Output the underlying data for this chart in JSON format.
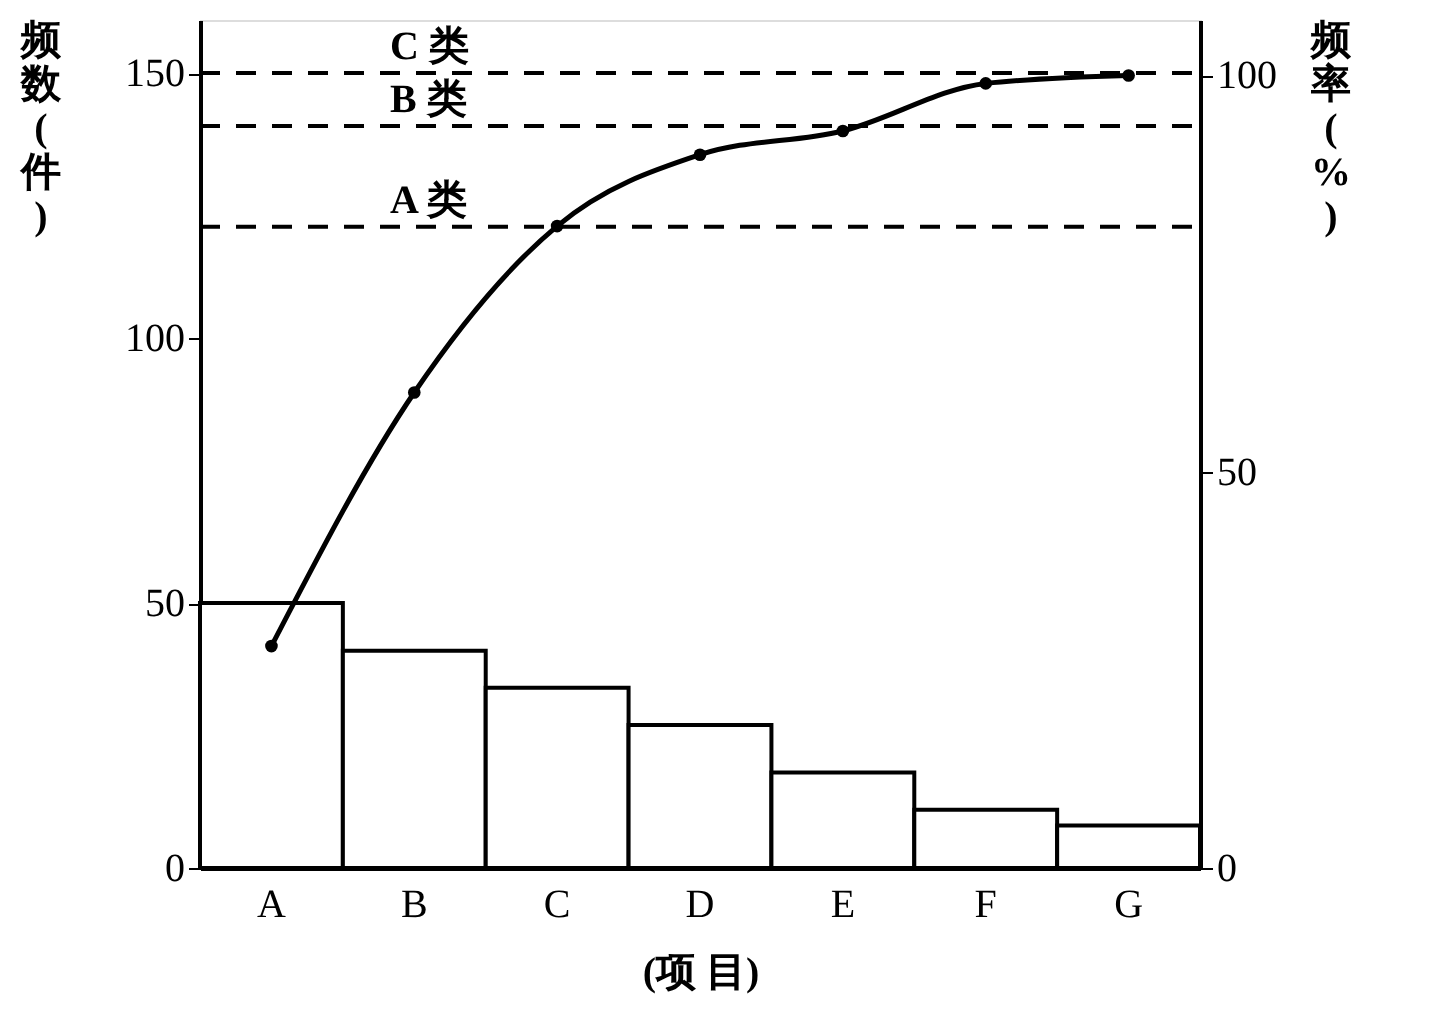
{
  "chart_data": {
    "type": "bar",
    "categories": [
      "A",
      "B",
      "C",
      "D",
      "E",
      "F",
      "G"
    ],
    "xlabel": "(项 目)",
    "ylabel": "频数(件)",
    "y2label": "频率(%)",
    "ylim": [
      0,
      160
    ],
    "yticks": [
      0,
      50,
      100,
      150
    ],
    "y2lim": [
      0,
      107
    ],
    "y2ticks": [
      0,
      50,
      100
    ],
    "grid": false,
    "marker": "circle",
    "line_style": "solid",
    "series": [
      {
        "color": "#ffffff",
        "values": [
          50,
          41,
          34,
          27,
          18,
          11,
          8
        ]
      },
      {
        "type": "line",
        "axis": "y2",
        "color": "#000000",
        "values": [
          28,
          60,
          81,
          90,
          93,
          99,
          100
        ]
      }
    ],
    "ref_lines": [
      {
        "axis": "y",
        "value": 150,
        "label": "C 类",
        "line_style": "dashed",
        "color": "#000000"
      },
      {
        "axis": "y",
        "value": 140,
        "label": "B 类",
        "line_style": "dashed",
        "color": "#000000"
      },
      {
        "axis": "y",
        "value": 121,
        "label": "A 类",
        "line_style": "dashed",
        "color": "#000000"
      }
    ]
  }
}
